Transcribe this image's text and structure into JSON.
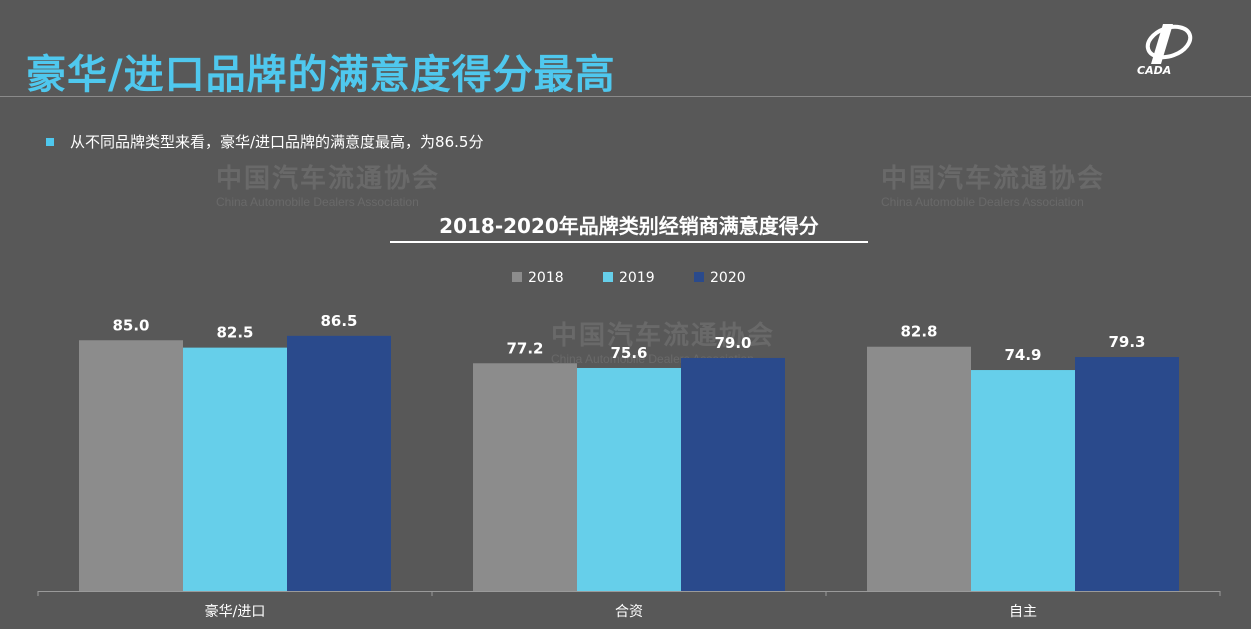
{
  "slide": {
    "title": "豪华/进口品牌的满意度得分最高",
    "bullet": "从不同品牌类型来看，豪华/进口品牌的满意度最高，为86.5分",
    "logo_text": "CADA"
  },
  "watermark": {
    "cn": "中国汽车流通协会",
    "en": "China Automobile Dealers Association"
  },
  "colors": {
    "background": "#585858",
    "accent": "#4fc8ee",
    "series_2018": "#8c8c8c",
    "series_2019": "#66cfea",
    "series_2020": "#2a4a8c"
  },
  "chart_data": {
    "type": "bar",
    "title": "2018-2020年品牌类别经销商满意度得分",
    "categories": [
      "豪华/进口",
      "合资",
      "自主"
    ],
    "series": [
      {
        "name": "2018",
        "values": [
          85.0,
          77.2,
          82.8
        ],
        "labels": [
          "85.0",
          "77.2",
          "82.8"
        ],
        "color": "#8c8c8c"
      },
      {
        "name": "2019",
        "values": [
          82.5,
          75.6,
          74.9
        ],
        "labels": [
          "82.5",
          "75.6",
          "74.9"
        ],
        "color": "#66cfea"
      },
      {
        "name": "2020",
        "values": [
          86.5,
          79.0,
          79.3
        ],
        "labels": [
          "86.5",
          "79.0",
          "79.3"
        ],
        "color": "#2a4a8c"
      }
    ],
    "ylim": [
      0,
      100
    ],
    "legend_position": "top-center",
    "grid": false
  }
}
